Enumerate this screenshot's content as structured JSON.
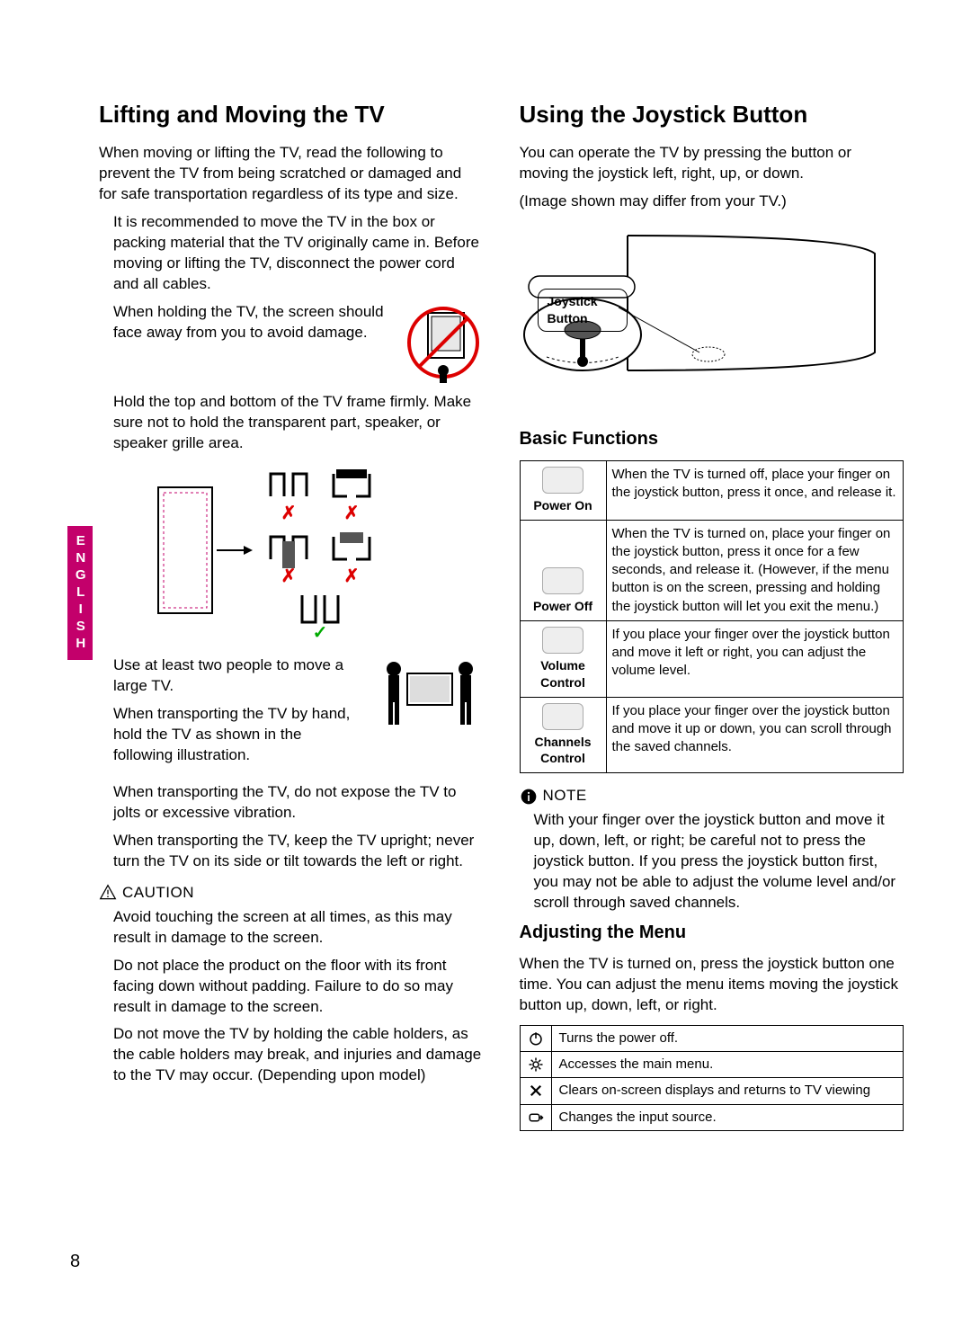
{
  "sideTab": "ENGLISH",
  "pageNumber": "8",
  "left": {
    "heading": "Lifting and Moving the TV",
    "intro": "When moving or lifting the TV, read the following to prevent the TV from being scratched or damaged and for safe transportation regardless of its type and size.",
    "p1": "It is recommended to move the TV in the box or packing material that the TV originally came in. Before moving or lifting the TV, disconnect the power cord and all cables.",
    "p2": "When holding the TV, the screen should face away from you to avoid damage.",
    "p3": "Hold the top and bottom of the TV frame firmly. Make sure not to hold the transparent part, speaker, or speaker grille area.",
    "p4a": "Use at least two people to move a large TV.",
    "p4b": "When transporting the TV by hand, hold the TV as shown in the following illustration.",
    "p5": "When transporting the TV, do not expose the TV to jolts or excessive vibration.",
    "p6": "When transporting the TV, keep the TV upright; never turn the TV on its side or tilt towards the left or right.",
    "cautionLabel": "CAUTION",
    "caution1": "Avoid touching the screen at all times, as this may result in damage to the screen.",
    "caution2": "Do not place the product on the floor with its front facing down without padding. Failure to do so may result in damage to the screen.",
    "caution3": "Do not move the TV by holding the cable holders, as the cable holders may break, and injuries and damage to the TV may occur. (Depending upon model)"
  },
  "right": {
    "heading": "Using the Joystick Button",
    "intro": "You can operate the TV by pressing the button or moving the joystick left, right, up, or down.",
    "note0": "(Image shown may differ from your TV.)",
    "joystickLabel": "Joystick Button",
    "basicHeading": "Basic Functions",
    "funcs": [
      {
        "label": "Power On",
        "desc": "When the TV is turned off, place your finger on the joystick button, press it once, and release it."
      },
      {
        "label": "Power Off",
        "desc": "When the TV is turned on, place your finger on the joystick button, press it once for a few seconds, and release it. (However, if the menu button is on the screen, pressing and holding the joystick button will let you exit the menu.)"
      },
      {
        "label": "Volume Control",
        "desc": "If you place your finger over the joystick button and move it left or right, you can adjust the volume level."
      },
      {
        "label": "Channels Control",
        "desc": "If you place your finger over the joystick button and move it up or down, you can scroll through the saved channels."
      }
    ],
    "noteLabel": "NOTE",
    "noteText": "With your finger over the joystick button and move it up, down, left, or right; be careful not to press the joystick button. If you press the joystick button first, you may not be able to adjust the volume level and/or scroll through saved channels.",
    "adjHeading": "Adjusting the Menu",
    "adjText": "When the TV is turned on, press the joystick button one time. You can adjust the menu items moving the joystick button up, down, left, or right.",
    "menu": [
      {
        "icon": "power",
        "desc": "Turns the power off."
      },
      {
        "icon": "gear",
        "desc": "Accesses the main menu."
      },
      {
        "icon": "close",
        "desc": "Clears on-screen displays and returns to TV viewing"
      },
      {
        "icon": "input",
        "desc": "Changes the input source."
      }
    ]
  }
}
